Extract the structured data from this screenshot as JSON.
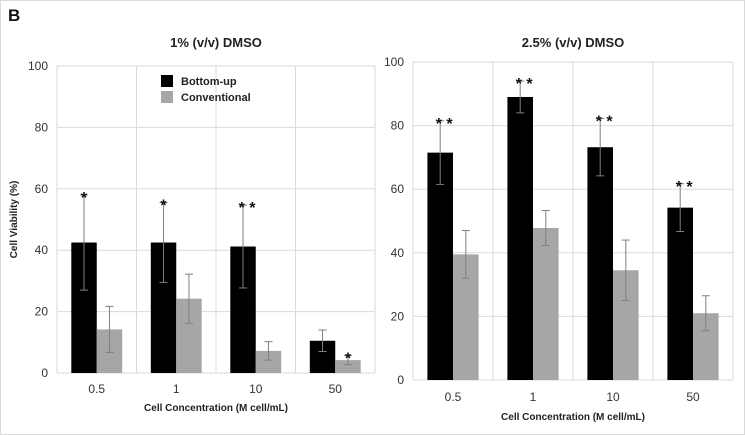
{
  "panel_label": "B",
  "chart_data": [
    {
      "type": "bar",
      "title": "1% (v/v) DMSO",
      "xlabel": "Cell Concentration (M cell/mL)",
      "ylabel": "Cell Viability (%)",
      "ylim": [
        0,
        100
      ],
      "yticks": [
        0,
        20,
        40,
        60,
        80,
        100
      ],
      "grid": true,
      "legend_position": "top-center",
      "categories": [
        "0.5",
        "1",
        "10",
        "50"
      ],
      "series": [
        {
          "name": "Bottom-up",
          "color": "#000000",
          "values": [
            42.5,
            42.5,
            41.2,
            10.5
          ],
          "errors": [
            15.5,
            13,
            13.5,
            3.5
          ],
          "annotations": [
            "*",
            "*",
            "**",
            ""
          ]
        },
        {
          "name": "Conventional",
          "color": "#a6a6a6",
          "values": [
            14.2,
            24.2,
            7.2,
            4.2
          ],
          "errors": [
            7.5,
            8,
            3,
            1.5
          ],
          "annotations": [
            "",
            "",
            "",
            "*"
          ]
        }
      ]
    },
    {
      "type": "bar",
      "title": "2.5% (v/v) DMSO",
      "xlabel": "Cell Concentration (M cell/mL)",
      "ylabel": "",
      "ylim": [
        0,
        100
      ],
      "yticks": [
        0,
        20,
        40,
        60,
        80,
        100
      ],
      "grid": true,
      "legend_position": "none",
      "categories": [
        "0.5",
        "1",
        "10",
        "50"
      ],
      "series": [
        {
          "name": "Bottom-up",
          "color": "#000000",
          "values": [
            71.5,
            89,
            73.2,
            54.2
          ],
          "errors": [
            10,
            5,
            9,
            7.5
          ],
          "annotations": [
            "**",
            "**",
            "**",
            "**"
          ]
        },
        {
          "name": "Conventional",
          "color": "#a6a6a6",
          "values": [
            39.5,
            47.8,
            34.5,
            21
          ],
          "errors": [
            7.5,
            5.5,
            9.5,
            5.5
          ],
          "annotations": [
            "",
            "",
            "",
            ""
          ]
        }
      ]
    }
  ]
}
